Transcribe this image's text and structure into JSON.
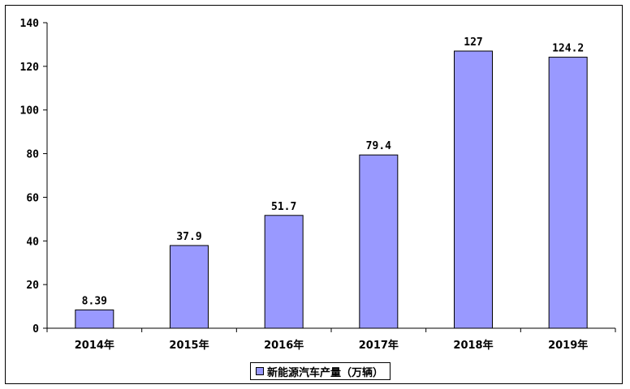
{
  "chart_data": {
    "type": "bar",
    "categories": [
      "2014年",
      "2015年",
      "2016年",
      "2017年",
      "2018年",
      "2019年"
    ],
    "series": [
      {
        "name": "新能源汽车产量（万辆）",
        "values": [
          8.39,
          37.9,
          51.7,
          79.4,
          127,
          124.2
        ]
      }
    ],
    "data_labels": [
      "8.39",
      "37.9",
      "51.7",
      "79.4",
      "127",
      "124.2"
    ],
    "y_ticks": [
      "0",
      "20",
      "40",
      "60",
      "80",
      "100",
      "120",
      "140"
    ],
    "ylim": [
      0,
      140
    ],
    "title": "",
    "xlabel": "",
    "ylabel": "",
    "grid": false,
    "legend_position": "bottom",
    "colors": {
      "bar": "#9999ff",
      "bar_edge": "#000000",
      "axis": "#000000"
    }
  }
}
